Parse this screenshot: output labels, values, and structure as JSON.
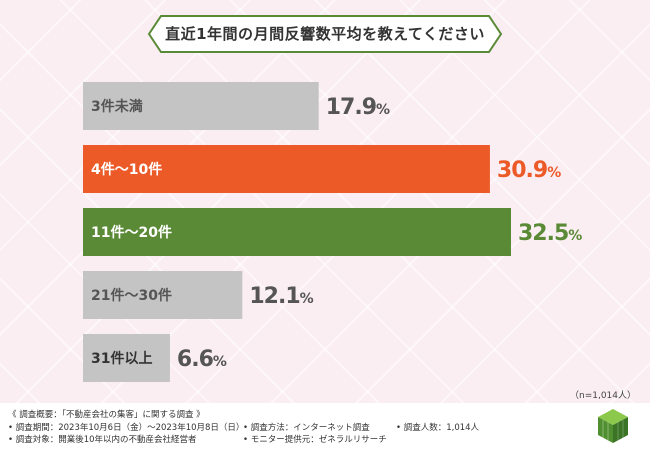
{
  "title": "直近1年間の月間反響数平均を教えてください",
  "sample_note": "（n=1,014人）",
  "colors": {
    "gray": "#c4c4c4",
    "orange": "#ec5a28",
    "green": "#5a8a36",
    "gray_value": "#555555"
  },
  "chart_data": {
    "type": "bar",
    "orientation": "horizontal",
    "categories": [
      "3件未満",
      "4件～10件",
      "11件～20件",
      "21件～30件",
      "31件以上"
    ],
    "values": [
      17.9,
      30.9,
      32.5,
      12.1,
      6.6
    ],
    "unit": "%",
    "bar_colors": [
      "#c4c4c4",
      "#ec5a28",
      "#5a8a36",
      "#c4c4c4",
      "#c4c4c4"
    ],
    "label_colors": [
      "#555555",
      "#ffffff",
      "#ffffff",
      "#555555",
      "#333333"
    ],
    "value_colors": [
      "#555555",
      "#ec5a28",
      "#5a8a36",
      "#555555",
      "#555555"
    ],
    "title": "直近1年間の月間反響数平均を教えてください",
    "xlabel": "",
    "ylabel": "",
    "grid": false
  },
  "footer": {
    "overview": "《 調査概要：「不動産会社の集客」に関する調査 》",
    "period": "• 調査期間：2023年10月6日（金）～2023年10月8日（日）",
    "target": "• 調査対象：開業後10年以内の不動産会社経営者",
    "method": "• 調査方法：インターネット調査",
    "provider": "• モニター提供元：ゼネラルリサーチ",
    "count": "• 調査人数：1,014人"
  },
  "logo_icon": "green-cube-logo-icon"
}
